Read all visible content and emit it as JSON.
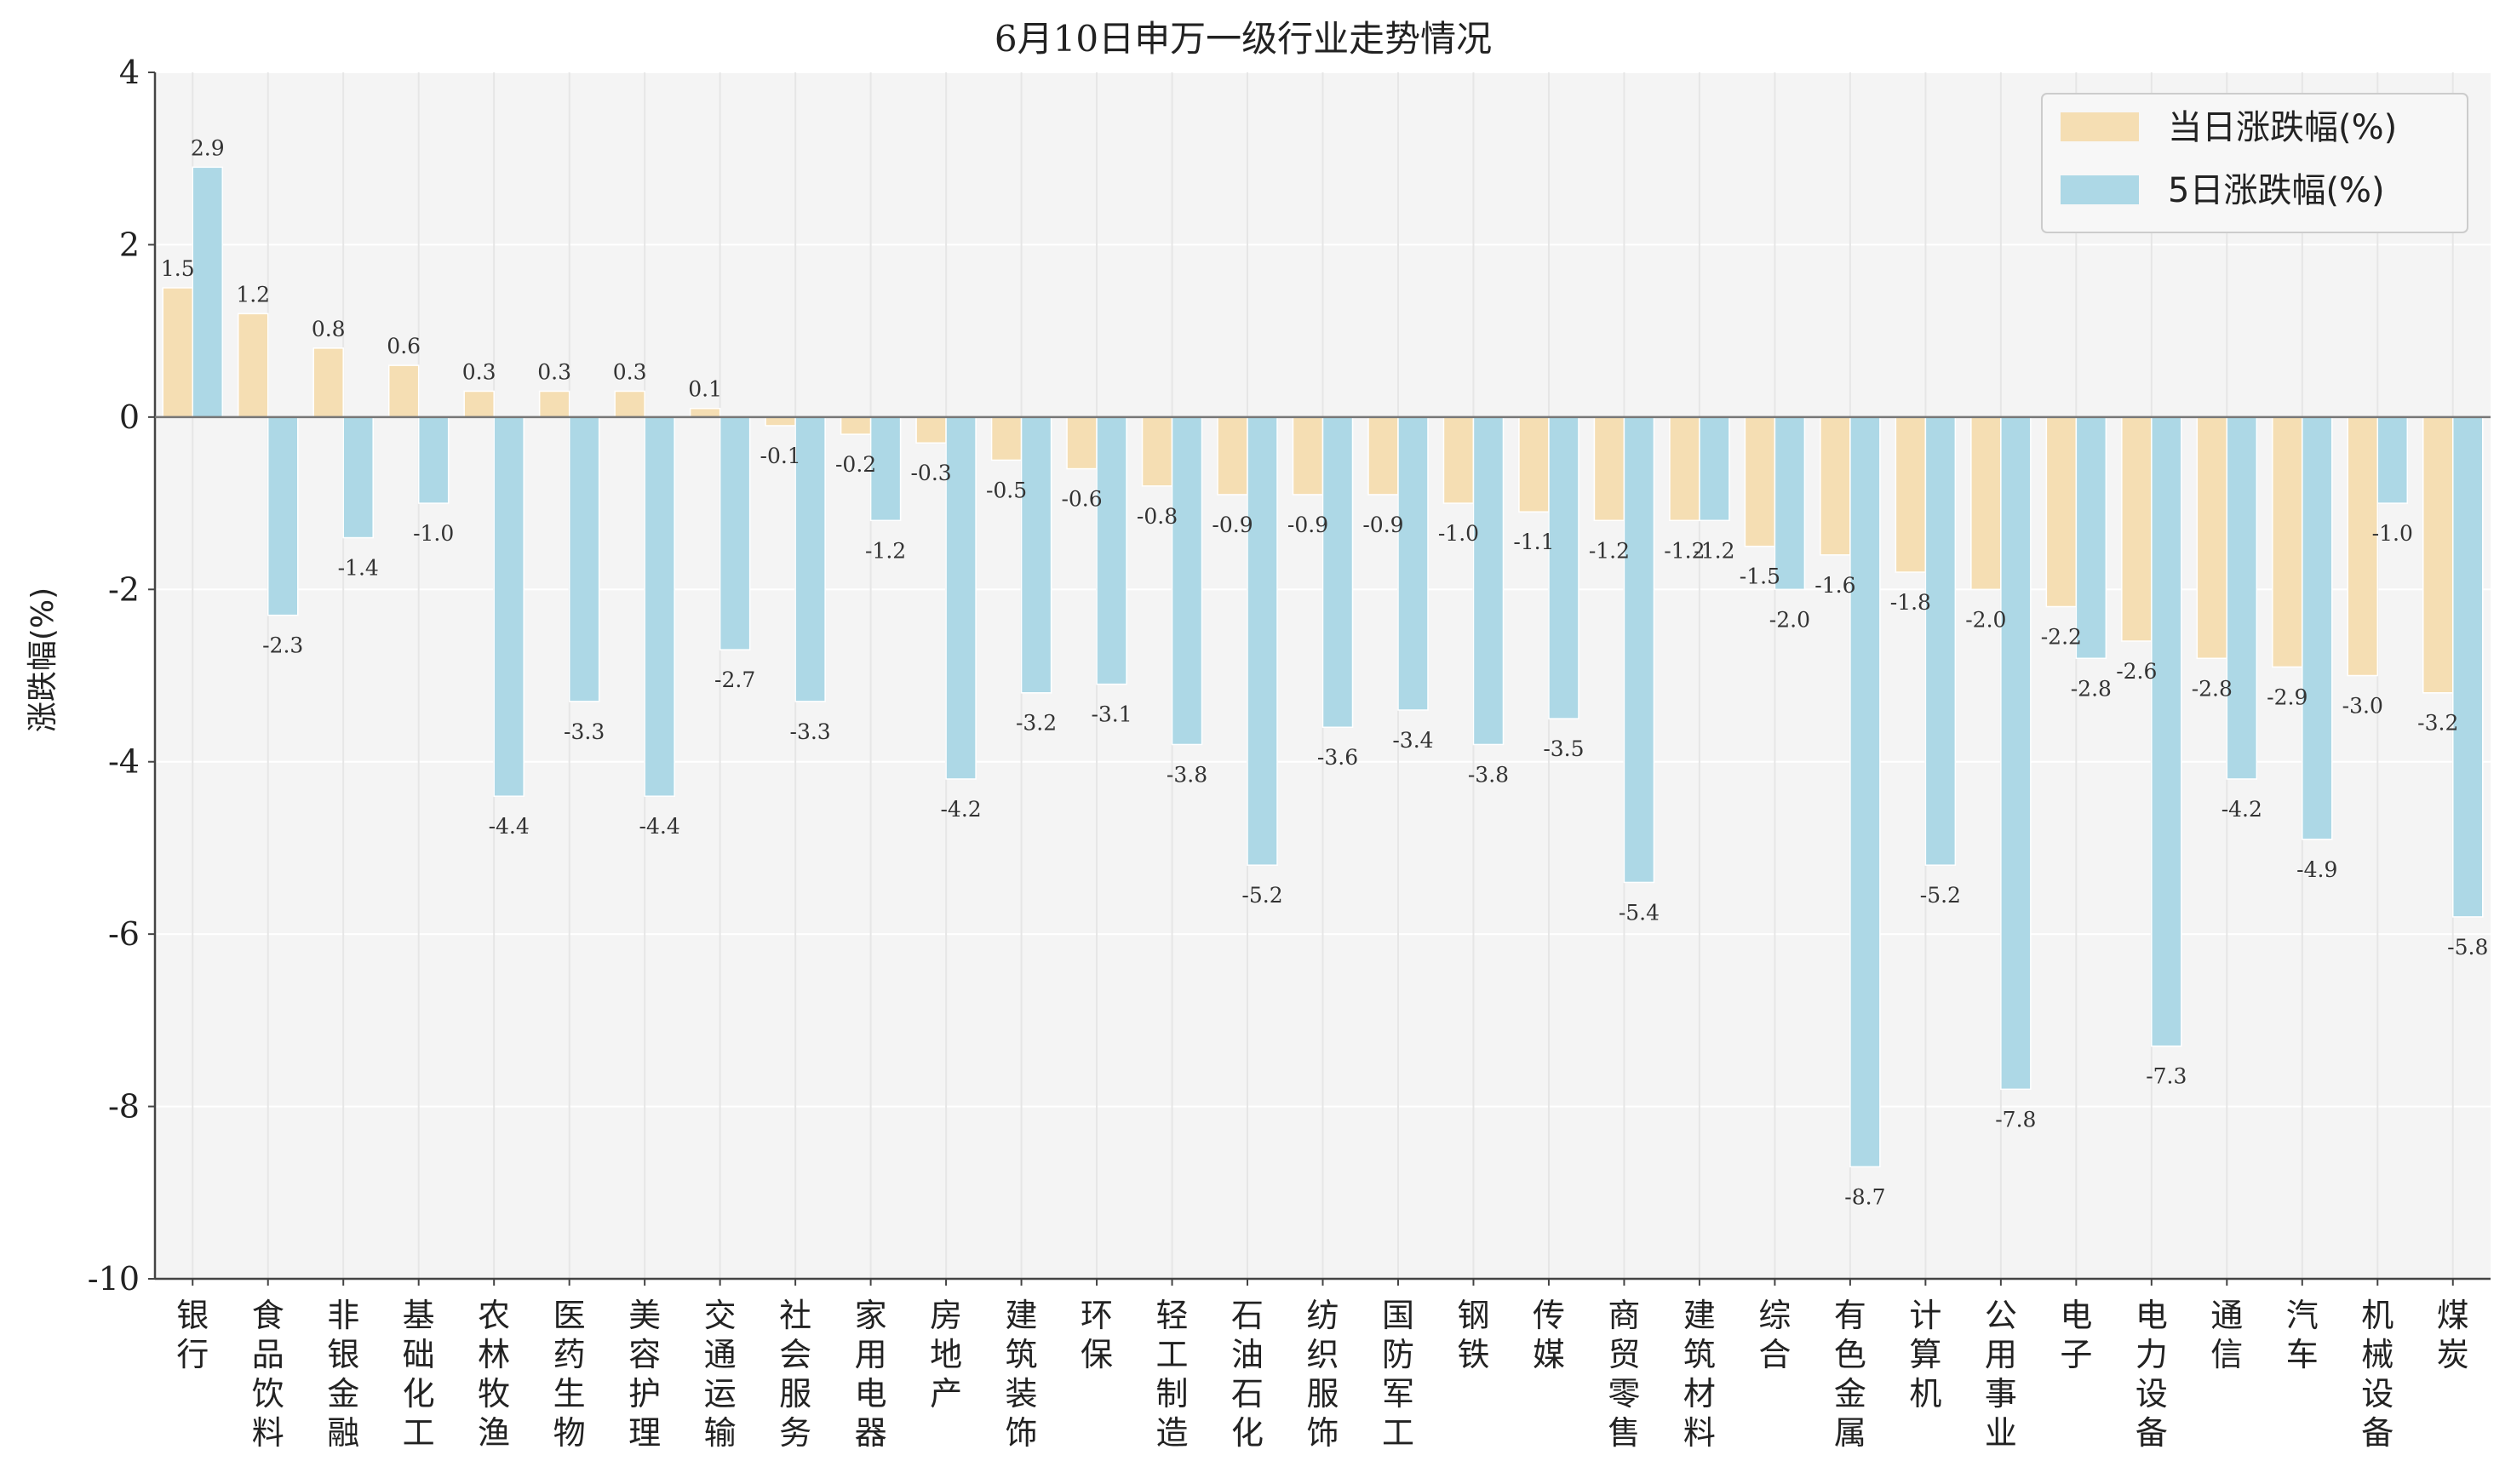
{
  "chart_data": {
    "type": "bar",
    "title": "6月10日申万一级行业走势情况",
    "ylabel": "涨跌幅(%)",
    "ylim": [
      -10,
      4
    ],
    "yticks": [
      4,
      2,
      0,
      -2,
      -4,
      -6,
      -8,
      -10
    ],
    "grid": true,
    "legend_position": "top-right",
    "categories": [
      "银行",
      "食品饮料",
      "非银金融",
      "基础化工",
      "农林牧渔",
      "医药生物",
      "美容护理",
      "交通运输",
      "社会服务",
      "家用电器",
      "房地产",
      "建筑装饰",
      "环保",
      "轻工制造",
      "石油石化",
      "纺织服饰",
      "国防军工",
      "钢铁",
      "传媒",
      "商贸零售",
      "建筑材料",
      "综合",
      "有色金属",
      "计算机",
      "公用事业",
      "电子",
      "电力设备",
      "通信",
      "汽车",
      "机械设备",
      "煤炭"
    ],
    "series": [
      {
        "name": "当日涨跌幅(%)",
        "color": "#f5deb3",
        "values": [
          1.5,
          1.2,
          0.8,
          0.6,
          0.3,
          0.3,
          0.3,
          0.1,
          -0.1,
          -0.2,
          -0.3,
          -0.5,
          -0.6,
          -0.8,
          -0.9,
          -0.9,
          -0.9,
          -1.0,
          -1.1,
          -1.2,
          -1.2,
          -1.5,
          -1.6,
          -1.8,
          -2.0,
          -2.2,
          -2.6,
          -2.8,
          -2.9,
          -3.0,
          -3.2
        ]
      },
      {
        "name": "5日涨跌幅(%)",
        "color": "#add8e6",
        "values": [
          2.9,
          -2.3,
          -1.4,
          -1.0,
          -4.4,
          -3.3,
          -4.4,
          -2.7,
          -3.3,
          -1.2,
          -4.2,
          -3.2,
          -3.1,
          -3.8,
          -5.2,
          -3.6,
          -3.4,
          -3.8,
          -3.5,
          -5.4,
          -1.2,
          -2.0,
          -8.7,
          -5.2,
          -7.8,
          -2.8,
          -7.3,
          -4.2,
          -4.9,
          -1.0,
          -5.8
        ]
      }
    ]
  }
}
